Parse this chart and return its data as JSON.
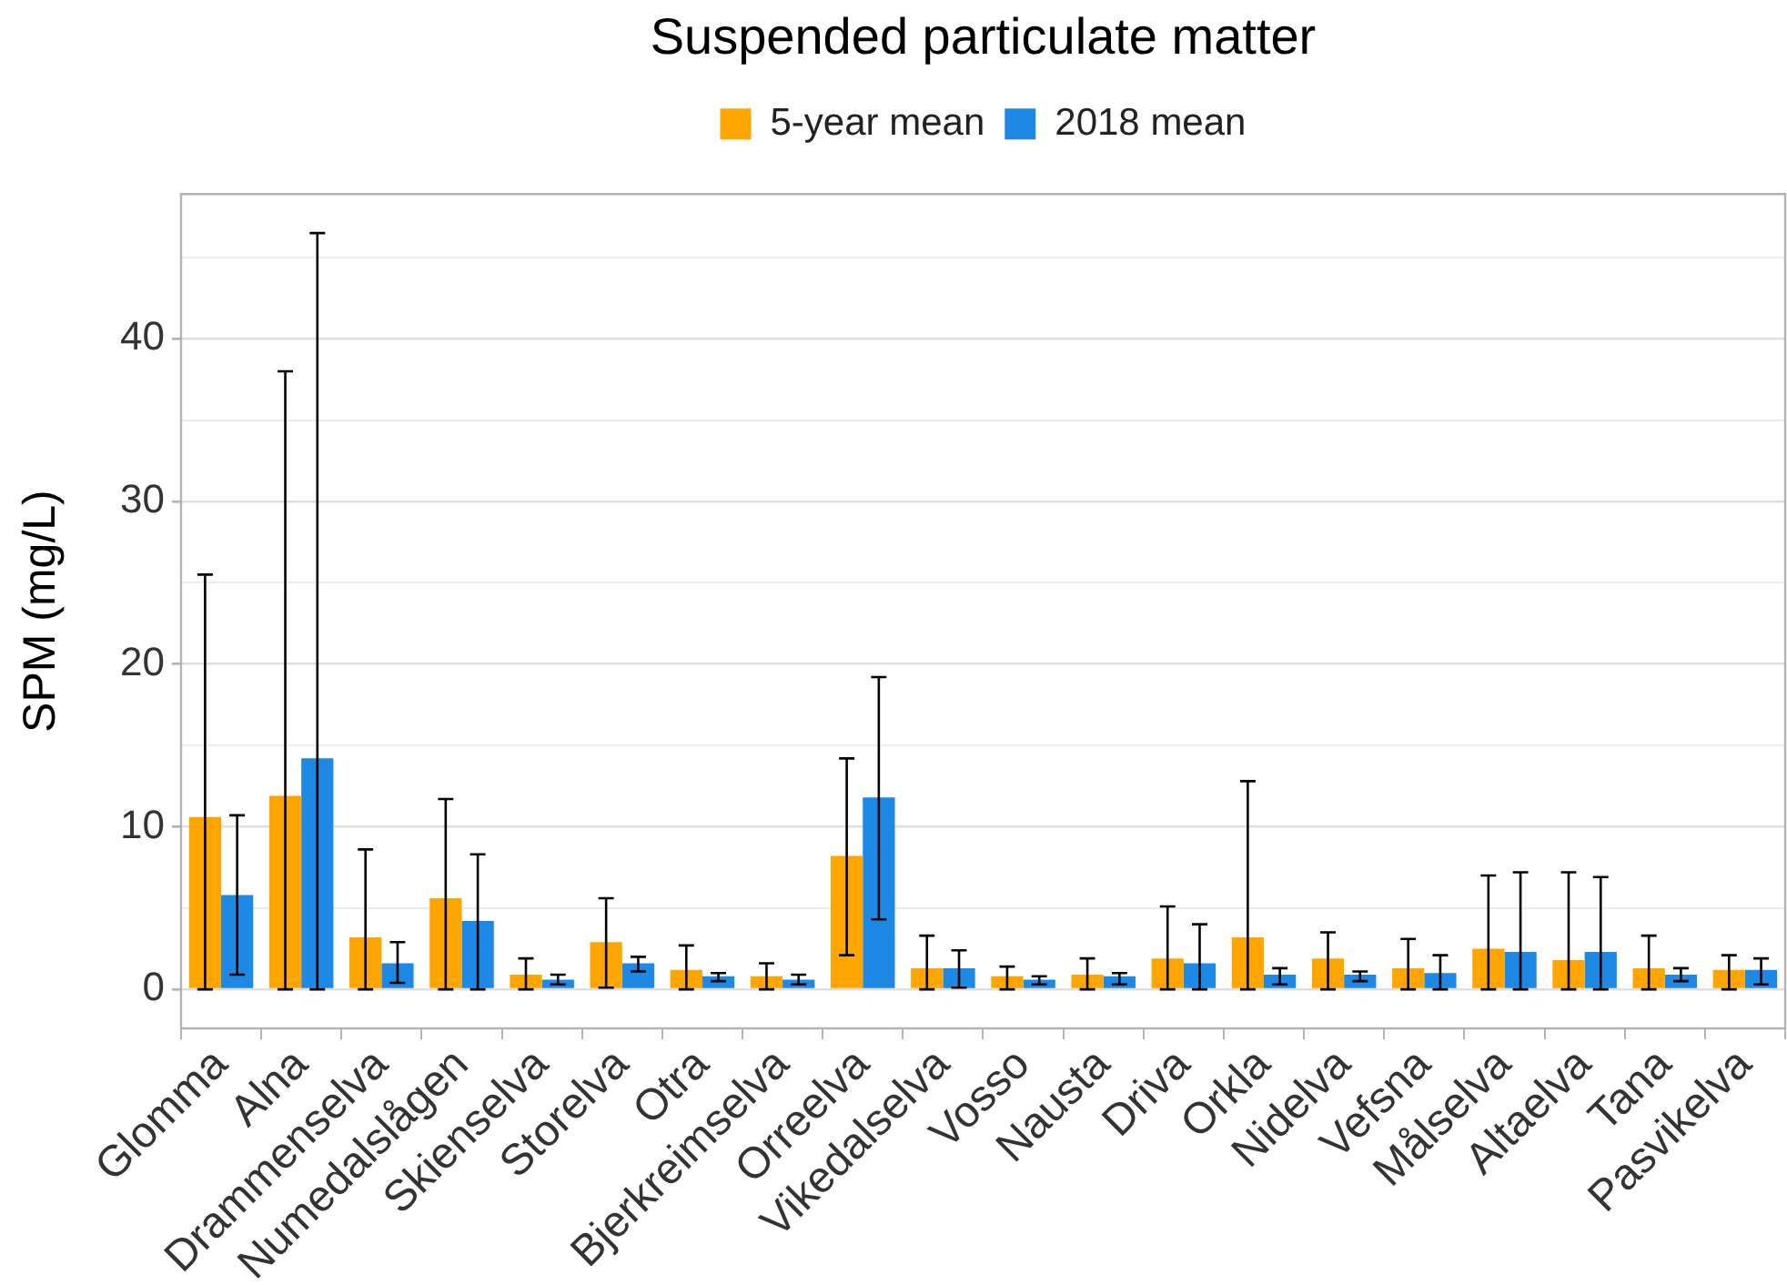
{
  "chart_data": {
    "type": "bar",
    "title": "Suspended particulate matter",
    "ylabel": "SPM (mg/L)",
    "categories": [
      "Glomma",
      "Alna",
      "Drammenselva",
      "Numedalslågen",
      "Skienselva",
      "Storelva",
      "Otra",
      "Bjerkreimselva",
      "Orreelva",
      "Vikedalselva",
      "Vosso",
      "Nausta",
      "Driva",
      "Orkla",
      "Nidelva",
      "Vefsna",
      "Målselva",
      "Altaelva",
      "Tana",
      "Pasvikelva"
    ],
    "series": [
      {
        "name": "5-year mean",
        "color": "#ffa500",
        "values": [
          10.6,
          11.9,
          3.2,
          5.6,
          0.9,
          2.9,
          1.2,
          0.8,
          8.2,
          1.3,
          0.8,
          0.9,
          1.9,
          3.2,
          1.9,
          1.3,
          2.5,
          1.8,
          1.3,
          1.2
        ],
        "errors": [
          [
            0,
            25.5
          ],
          [
            0,
            38.0
          ],
          [
            0,
            8.6
          ],
          [
            0,
            11.7
          ],
          [
            0,
            1.9
          ],
          [
            0.1,
            5.6
          ],
          [
            0,
            2.7
          ],
          [
            0,
            1.6
          ],
          [
            2.1,
            14.2
          ],
          [
            0,
            3.3
          ],
          [
            0,
            1.4
          ],
          [
            0,
            1.9
          ],
          [
            0,
            5.1
          ],
          [
            0,
            12.8
          ],
          [
            0,
            3.5
          ],
          [
            0,
            3.1
          ],
          [
            0,
            7.0
          ],
          [
            0,
            7.2
          ],
          [
            0,
            3.3
          ],
          [
            0,
            2.1
          ]
        ]
      },
      {
        "name": "2018 mean",
        "color": "#1e88e5",
        "values": [
          5.8,
          14.2,
          1.6,
          4.2,
          0.6,
          1.6,
          0.8,
          0.6,
          11.8,
          1.3,
          0.6,
          0.8,
          1.6,
          0.9,
          0.9,
          1.0,
          2.3,
          2.3,
          0.9,
          1.2
        ],
        "errors": [
          [
            0.9,
            10.7
          ],
          [
            0,
            46.5
          ],
          [
            0.4,
            2.9
          ],
          [
            0,
            8.3
          ],
          [
            0.3,
            0.9
          ],
          [
            1.1,
            2.0
          ],
          [
            0.5,
            1.0
          ],
          [
            0.3,
            0.9
          ],
          [
            4.3,
            19.2
          ],
          [
            0.1,
            2.4
          ],
          [
            0.3,
            0.8
          ],
          [
            0.3,
            1.0
          ],
          [
            0,
            4.0
          ],
          [
            0.3,
            1.3
          ],
          [
            0.5,
            1.1
          ],
          [
            0,
            2.1
          ],
          [
            0,
            7.2
          ],
          [
            0,
            6.9
          ],
          [
            0.5,
            1.3
          ],
          [
            0.3,
            1.9
          ]
        ]
      }
    ],
    "ylim": [
      -2.4,
      48.9
    ],
    "yticks": [
      0,
      {
        "value": 5,
        "label": null
      },
      10,
      {
        "value": 15,
        "label": null
      },
      20,
      {
        "value": 25,
        "label": null
      },
      30,
      {
        "value": 35,
        "label": null
      },
      40,
      {
        "value": 45,
        "label": null
      }
    ],
    "grid": "y",
    "legend": "top"
  }
}
